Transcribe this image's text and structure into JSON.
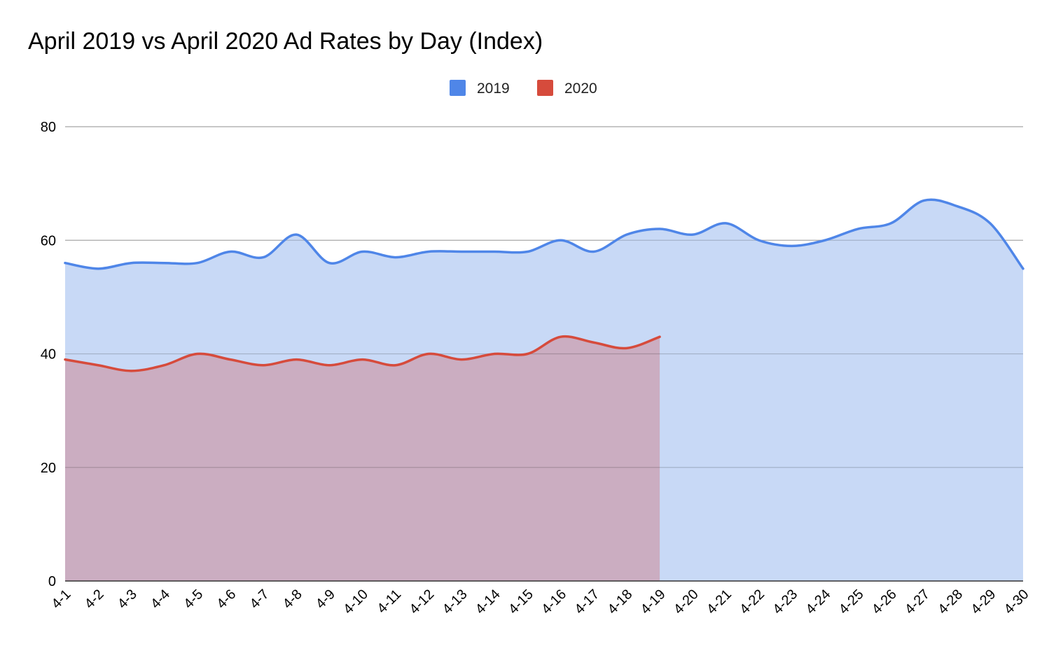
{
  "chart_data": {
    "type": "area",
    "title": "April 2019 vs April 2020 Ad Rates by Day (Index)",
    "xlabel": "",
    "ylabel": "",
    "ylim": [
      0,
      80
    ],
    "yticks": [
      0,
      20,
      40,
      60,
      80
    ],
    "grid": true,
    "legend_position": "top-center",
    "categories": [
      "4-1",
      "4-2",
      "4-3",
      "4-4",
      "4-5",
      "4-6",
      "4-7",
      "4-8",
      "4-9",
      "4-10",
      "4-11",
      "4-12",
      "4-13",
      "4-14",
      "4-15",
      "4-16",
      "4-17",
      "4-18",
      "4-19",
      "4-20",
      "4-21",
      "4-22",
      "4-23",
      "4-24",
      "4-25",
      "4-26",
      "4-27",
      "4-28",
      "4-29",
      "4-30"
    ],
    "series": [
      {
        "name": "2019",
        "color": "#4f86e8",
        "fill": "#c8d9f6",
        "values": [
          56,
          55,
          56,
          56,
          56,
          58,
          57,
          61,
          56,
          58,
          57,
          58,
          58,
          58,
          58,
          60,
          58,
          61,
          62,
          61,
          63,
          60,
          59,
          60,
          62,
          63,
          67,
          66,
          63,
          55
        ]
      },
      {
        "name": "2020",
        "color": "#d64b3c",
        "fill": "#cbadc1",
        "values": [
          39,
          38,
          37,
          38,
          40,
          39,
          38,
          39,
          38,
          39,
          38,
          40,
          39,
          40,
          40,
          43,
          42,
          41,
          43,
          null,
          null,
          null,
          null,
          null,
          null,
          null,
          null,
          null,
          null,
          null
        ]
      }
    ]
  }
}
